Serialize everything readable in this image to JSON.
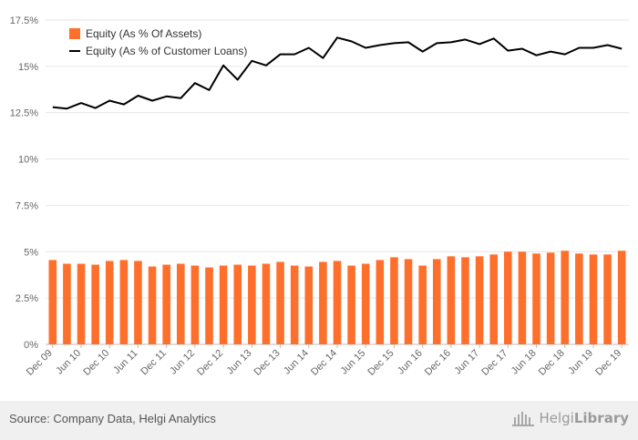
{
  "chart_data": {
    "type": "bar",
    "legend_position": "top-left",
    "grid": true,
    "y_ticks": [
      "0%",
      "2.5%",
      "5%",
      "7.5%",
      "10%",
      "12.5%",
      "15%",
      "17.5%"
    ],
    "ylim": [
      0,
      17.5
    ],
    "x_tick_labels": [
      "Dec 09",
      "Jun 10",
      "Dec 10",
      "Jun 11",
      "Dec 11",
      "Jun 12",
      "Dec 12",
      "Jun 13",
      "Dec 13",
      "Jun 14",
      "Dec 14",
      "Jun 15",
      "Dec 15",
      "Jun 16",
      "Dec 16",
      "Jun 17",
      "Dec 17",
      "Jun 18",
      "Dec 18",
      "Jun 19",
      "Dec 19"
    ],
    "series": [
      {
        "name": "Equity (As % Of Assets)",
        "type": "bar",
        "color": "#ff6f2c",
        "values": [
          4.55,
          4.35,
          4.35,
          4.3,
          4.5,
          4.55,
          4.5,
          4.2,
          4.3,
          4.35,
          4.25,
          4.15,
          4.25,
          4.3,
          4.25,
          4.35,
          4.45,
          4.25,
          4.2,
          4.45,
          4.5,
          4.25,
          4.35,
          4.55,
          4.7,
          4.6,
          4.25,
          4.6,
          4.75,
          4.7,
          4.75,
          4.85,
          5.0,
          5.0,
          4.9,
          4.95,
          5.05,
          4.9,
          4.85,
          4.85,
          5.05
        ]
      },
      {
        "name": "Equity (As % of Customer Loans)",
        "type": "line",
        "color": "#000000",
        "values": [
          12.8,
          12.72,
          13.02,
          12.75,
          13.15,
          12.95,
          13.42,
          13.15,
          13.38,
          13.28,
          14.1,
          13.72,
          15.05,
          14.28,
          15.3,
          15.05,
          15.65,
          15.65,
          16.0,
          15.45,
          16.55,
          16.35,
          16.0,
          16.15,
          16.25,
          16.3,
          15.8,
          16.25,
          16.3,
          16.45,
          16.2,
          16.5,
          15.85,
          15.95,
          15.6,
          15.8,
          15.65,
          16.0,
          16.0,
          16.15,
          15.95
        ]
      }
    ]
  },
  "footer": {
    "source": "Source: Company Data, Helgi Analytics",
    "brand_regular": "Helgi",
    "brand_bold": "Library"
  }
}
